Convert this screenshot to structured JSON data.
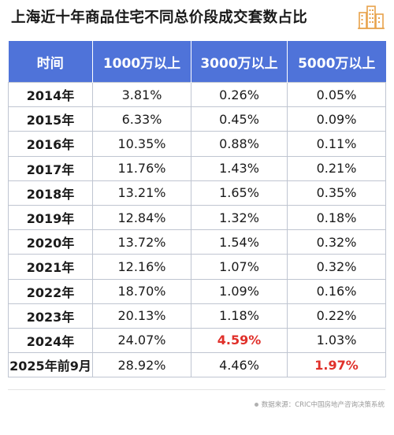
{
  "title": "上海近十年商品住宅不同总价段成交套数占比",
  "logo_icon": "city-buildings-icon",
  "colors": {
    "header_bg": "#4f73d9",
    "highlight": "#e0302a",
    "logo": "#e8a24a"
  },
  "table": {
    "headers": [
      "时间",
      "1000万以上",
      "3000万以上",
      "5000万以上"
    ],
    "rows": [
      [
        "2014年",
        "3.81%",
        "0.26%",
        "0.05%"
      ],
      [
        "2015年",
        "6.33%",
        "0.45%",
        "0.09%"
      ],
      [
        "2016年",
        "10.35%",
        "0.88%",
        "0.11%"
      ],
      [
        "2017年",
        "11.76%",
        "1.43%",
        "0.21%"
      ],
      [
        "2018年",
        "13.21%",
        "1.65%",
        "0.35%"
      ],
      [
        "2019年",
        "12.84%",
        "1.32%",
        "0.18%"
      ],
      [
        "2020年",
        "13.72%",
        "1.54%",
        "0.32%"
      ],
      [
        "2021年",
        "12.16%",
        "1.07%",
        "0.32%"
      ],
      [
        "2022年",
        "18.70%",
        "1.09%",
        "0.16%"
      ],
      [
        "2023年",
        "20.13%",
        "1.18%",
        "0.22%"
      ],
      [
        "2024年",
        "24.07%",
        "4.59%",
        "1.03%"
      ],
      [
        "2025年前9月",
        "28.92%",
        "4.46%",
        "1.97%"
      ]
    ],
    "highlighted_cells": [
      [
        10,
        2
      ],
      [
        11,
        3
      ]
    ]
  },
  "source": "数据来源：CRIC中国房地产咨询决策系统"
}
